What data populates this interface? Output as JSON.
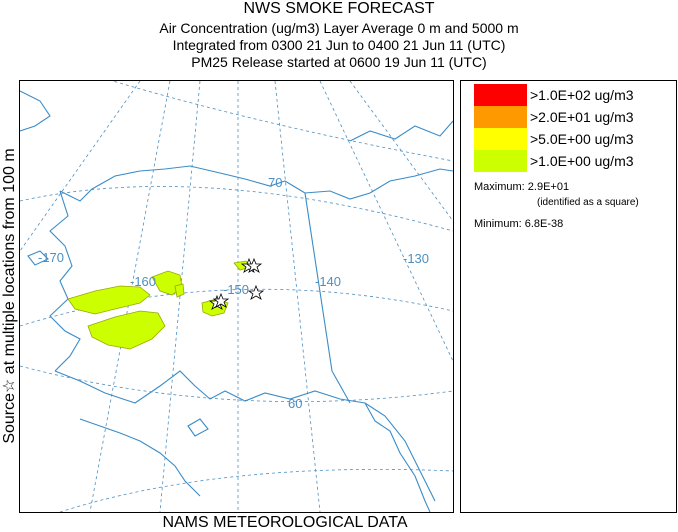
{
  "header": {
    "title": "NWS SMOKE FORECAST",
    "line1": "Air Concentration (ug/m3) Layer Average    0 m and  5000 m",
    "line2": "Integrated from 0300 21 Jun to 0400 21 Jun 11 (UTC)",
    "line3": "PM25 Release started at 0600 19 Jun 11 (UTC)"
  },
  "side_label": "Source☆  at multiple locations  from  100 m",
  "footer": "NAMS METEOROLOGICAL DATA",
  "map": {
    "lon_labels": [
      "-170",
      "-160",
      "-150",
      "-140",
      "-130"
    ],
    "lat_labels": [
      "70",
      "60"
    ],
    "colors": {
      "ocean_grid": "#4d8fc0",
      "coast": "#3a8cc8",
      "smoke_light": "#ccff00",
      "smoke_outline": "#9aa800",
      "smoke_max": "#ff9900"
    }
  },
  "legend": {
    "items": [
      {
        "label": ">1.0E+02 ug/m3",
        "color": "#ff0000"
      },
      {
        "label": ">2.0E+01 ug/m3",
        "color": "#ff9900"
      },
      {
        "label": ">5.0E+00 ug/m3",
        "color": "#ffff00"
      },
      {
        "label": ">1.0E+00 ug/m3",
        "color": "#ccff00"
      }
    ],
    "maximum": "Maximum: 2.9E+01",
    "maximum_note": "(identified as a square)",
    "minimum": "Minimum: 6.8E-38"
  }
}
